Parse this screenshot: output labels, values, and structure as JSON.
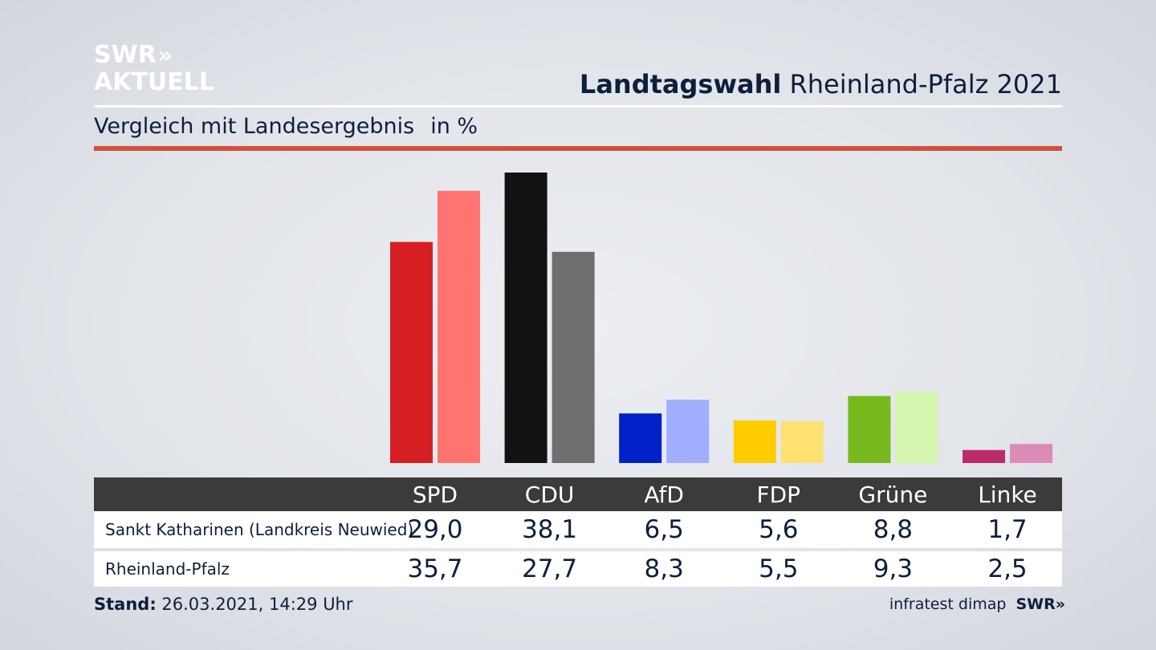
{
  "logo": {
    "line1": "SWR",
    "arrows": "»",
    "line2": "AKTUELL"
  },
  "header": {
    "title_bold": "Landtagswahl",
    "title_rest": "Rheinland-Pfalz 2021"
  },
  "subtitle": {
    "text": "Vergleich mit Landesergebnis",
    "unit": "in %"
  },
  "footer": {
    "stand_label": "Stand:",
    "stand_value": "26.03.2021, 14:29 Uhr",
    "source": "infratest dimap",
    "brand": "SWR",
    "brand_arrows": "»"
  },
  "table": {
    "rows": [
      {
        "label": "Sankt Katharinen (Landkreis Neuwied)",
        "values": [
          "29,0",
          "38,1",
          "6,5",
          "5,6",
          "8,8",
          "1,7"
        ]
      },
      {
        "label": "Rheinland-Pfalz",
        "values": [
          "35,7",
          "27,7",
          "8,3",
          "5,5",
          "9,3",
          "2,5"
        ]
      }
    ]
  },
  "chart_data": {
    "type": "bar",
    "categories": [
      "SPD",
      "CDU",
      "AfD",
      "FDP",
      "Grüne",
      "Linke"
    ],
    "series": [
      {
        "name": "Sankt Katharinen (Landkreis Neuwied)",
        "values": [
          29.0,
          38.1,
          6.5,
          5.6,
          8.8,
          1.7
        ],
        "colors": [
          "#d51f22",
          "#121212",
          "#0020c8",
          "#ffcc00",
          "#78ba1e",
          "#bd2a6a"
        ]
      },
      {
        "name": "Rheinland-Pfalz",
        "values": [
          35.7,
          27.7,
          8.3,
          5.5,
          9.3,
          2.5
        ],
        "colors": [
          "#ff7470",
          "#6f6e6c",
          "#a1aefe",
          "#fee172",
          "#d4f5ad",
          "#dd8cb7"
        ]
      }
    ],
    "ylim": [
      0,
      38.1
    ],
    "grid": false
  }
}
